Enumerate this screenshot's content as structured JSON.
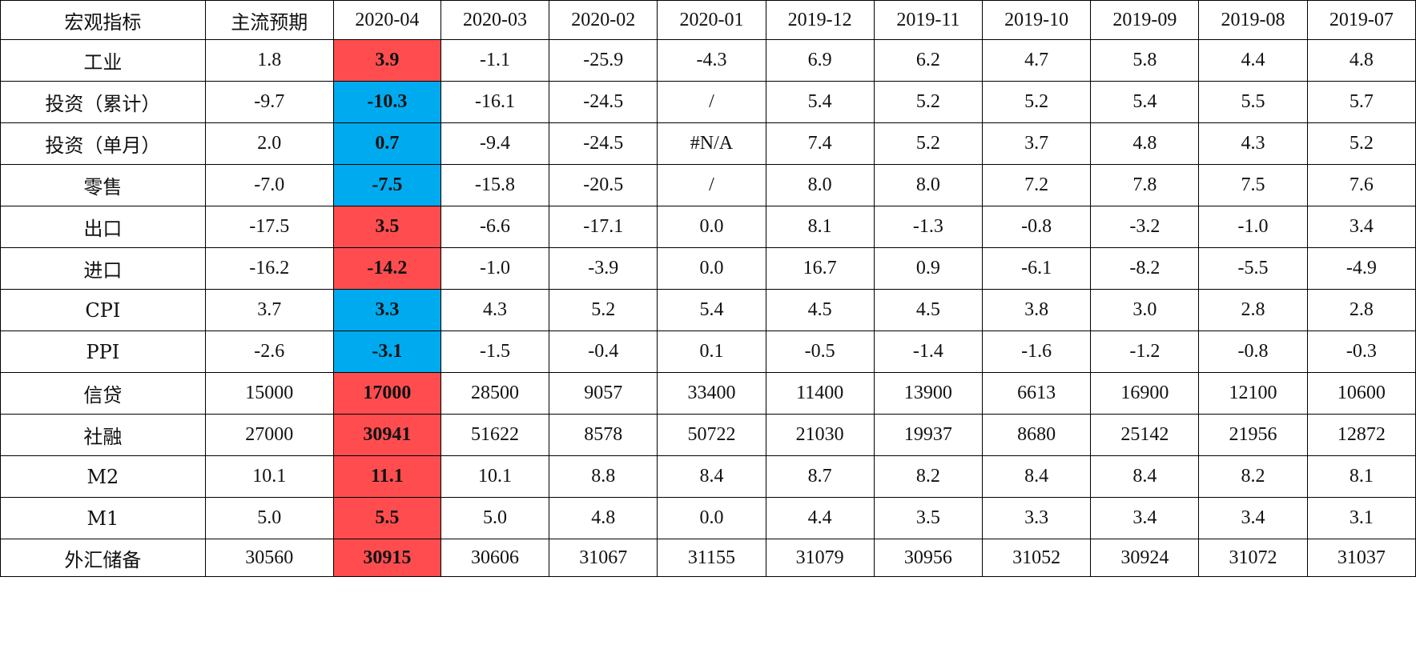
{
  "table": {
    "headers": [
      "宏观指标",
      "主流预期",
      "2020-04",
      "2020-03",
      "2020-02",
      "2020-01",
      "2019-12",
      "2019-11",
      "2019-10",
      "2019-09",
      "2019-08",
      "2019-07"
    ],
    "highlight_colors": {
      "red": "#ff4d4f",
      "blue": "#00aaee"
    },
    "rows": [
      {
        "name": "工业",
        "expected": "1.8",
        "highlight": "red",
        "values": [
          "3.9",
          "-1.1",
          "-25.9",
          "-4.3",
          "6.9",
          "6.2",
          "4.7",
          "5.8",
          "4.4",
          "4.8"
        ]
      },
      {
        "name": "投资（累计）",
        "expected": "-9.7",
        "highlight": "blue",
        "values": [
          "-10.3",
          "-16.1",
          "-24.5",
          "/",
          "5.4",
          "5.2",
          "5.2",
          "5.4",
          "5.5",
          "5.7"
        ]
      },
      {
        "name": "投资（单月）",
        "expected": "2.0",
        "highlight": "blue",
        "values": [
          "0.7",
          "-9.4",
          "-24.5",
          "#N/A",
          "7.4",
          "5.2",
          "3.7",
          "4.8",
          "4.3",
          "5.2"
        ]
      },
      {
        "name": "零售",
        "expected": "-7.0",
        "highlight": "blue",
        "values": [
          "-7.5",
          "-15.8",
          "-20.5",
          "/",
          "8.0",
          "8.0",
          "7.2",
          "7.8",
          "7.5",
          "7.6"
        ]
      },
      {
        "name": "出口",
        "expected": "-17.5",
        "highlight": "red",
        "values": [
          "3.5",
          "-6.6",
          "-17.1",
          "0.0",
          "8.1",
          "-1.3",
          "-0.8",
          "-3.2",
          "-1.0",
          "3.4"
        ]
      },
      {
        "name": "进口",
        "expected": "-16.2",
        "highlight": "red",
        "values": [
          "-14.2",
          "-1.0",
          "-3.9",
          "0.0",
          "16.7",
          "0.9",
          "-6.1",
          "-8.2",
          "-5.5",
          "-4.9"
        ]
      },
      {
        "name": "CPI",
        "expected": "3.7",
        "highlight": "blue",
        "values": [
          "3.3",
          "4.3",
          "5.2",
          "5.4",
          "4.5",
          "4.5",
          "3.8",
          "3.0",
          "2.8",
          "2.8"
        ]
      },
      {
        "name": "PPI",
        "expected": "-2.6",
        "highlight": "blue",
        "values": [
          "-3.1",
          "-1.5",
          "-0.4",
          "0.1",
          "-0.5",
          "-1.4",
          "-1.6",
          "-1.2",
          "-0.8",
          "-0.3"
        ]
      },
      {
        "name": "信贷",
        "expected": "15000",
        "highlight": "red",
        "values": [
          "17000",
          "28500",
          "9057",
          "33400",
          "11400",
          "13900",
          "6613",
          "16900",
          "12100",
          "10600"
        ]
      },
      {
        "name": "社融",
        "expected": "27000",
        "highlight": "red",
        "values": [
          "30941",
          "51622",
          "8578",
          "50722",
          "21030",
          "19937",
          "8680",
          "25142",
          "21956",
          "12872"
        ]
      },
      {
        "name": "M2",
        "expected": "10.1",
        "highlight": "red",
        "values": [
          "11.1",
          "10.1",
          "8.8",
          "8.4",
          "8.7",
          "8.2",
          "8.4",
          "8.4",
          "8.2",
          "8.1"
        ]
      },
      {
        "name": "M1",
        "expected": "5.0",
        "highlight": "red",
        "values": [
          "5.5",
          "5.0",
          "4.8",
          "0.0",
          "4.4",
          "3.5",
          "3.3",
          "3.4",
          "3.4",
          "3.1"
        ]
      },
      {
        "name": "外汇储备",
        "expected": "30560",
        "highlight": "red",
        "values": [
          "30915",
          "30606",
          "31067",
          "31155",
          "31079",
          "30956",
          "31052",
          "30924",
          "31072",
          "31037"
        ]
      }
    ]
  }
}
